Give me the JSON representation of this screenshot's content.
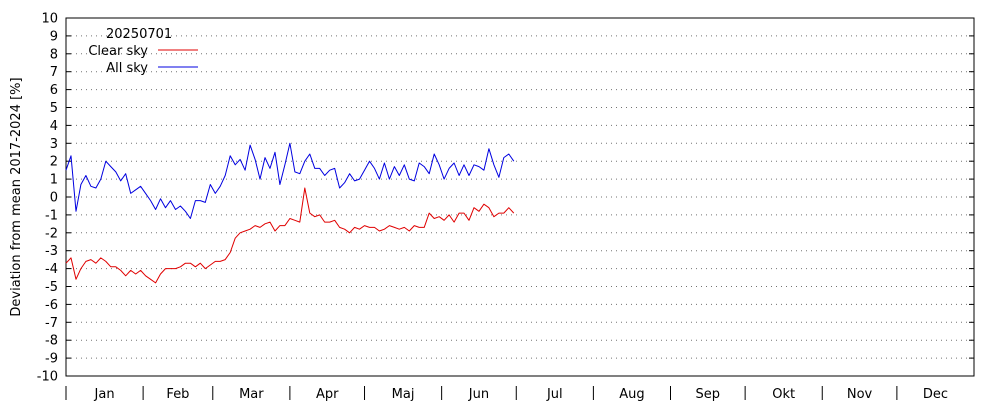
{
  "chart_data": {
    "type": "line",
    "title": "",
    "ylabel": "Deviation from mean 2017-2024  [%]",
    "xlabel": "",
    "ylim": [
      -10,
      10
    ],
    "yticks": [
      -10,
      -9,
      -8,
      -7,
      -6,
      -5,
      -4,
      -3,
      -2,
      -1,
      0,
      1,
      2,
      3,
      4,
      5,
      6,
      7,
      8,
      9,
      10
    ],
    "xlim": [
      1,
      366
    ],
    "months": [
      "Jan",
      "Feb",
      "Mar",
      "Apr",
      "Maj",
      "Jun",
      "Jul",
      "Aug",
      "Sep",
      "Okt",
      "Nov",
      "Dec"
    ],
    "grid": true,
    "legend": {
      "placement": "top-left",
      "header": "20250701"
    },
    "series": [
      {
        "name": "Clear sky",
        "color": "#e00000",
        "x": [
          1,
          3,
          5,
          7,
          9,
          11,
          13,
          15,
          17,
          19,
          21,
          23,
          25,
          27,
          29,
          31,
          33,
          35,
          37,
          39,
          41,
          43,
          45,
          47,
          49,
          51,
          53,
          55,
          57,
          59,
          61,
          63,
          65,
          67,
          69,
          71,
          73,
          75,
          77,
          79,
          81,
          83,
          85,
          87,
          89,
          91,
          93,
          95,
          97,
          99,
          101,
          103,
          105,
          107,
          109,
          111,
          113,
          115,
          117,
          119,
          121,
          123,
          125,
          127,
          129,
          131,
          133,
          135,
          137,
          139,
          141,
          143,
          145,
          147,
          149,
          151,
          153,
          155,
          157,
          159,
          161,
          163,
          165,
          167,
          169,
          171,
          173,
          175,
          177,
          179,
          181
        ],
        "y": [
          -3.7,
          -3.4,
          -4.6,
          -4.0,
          -3.6,
          -3.5,
          -3.7,
          -3.4,
          -3.6,
          -3.9,
          -3.9,
          -4.1,
          -4.4,
          -4.1,
          -4.3,
          -4.1,
          -4.4,
          -4.6,
          -4.8,
          -4.3,
          -4.0,
          -4.0,
          -4.0,
          -3.9,
          -3.7,
          -3.7,
          -3.9,
          -3.7,
          -4.0,
          -3.8,
          -3.6,
          -3.6,
          -3.5,
          -3.1,
          -2.3,
          -2.0,
          -1.9,
          -1.8,
          -1.6,
          -1.7,
          -1.5,
          -1.4,
          -1.9,
          -1.6,
          -1.6,
          -1.2,
          -1.3,
          -1.4,
          0.5,
          -0.9,
          -1.1,
          -1.0,
          -1.4,
          -1.4,
          -1.3,
          -1.7,
          -1.8,
          -2.0,
          -1.7,
          -1.8,
          -1.6,
          -1.7,
          -1.7,
          -1.9,
          -1.8,
          -1.6,
          -1.7,
          -1.8,
          -1.7,
          -1.9,
          -1.6,
          -1.7,
          -1.7,
          -0.9,
          -1.2,
          -1.1,
          -1.3,
          -1.0,
          -1.4,
          -0.9,
          -0.9,
          -1.3,
          -0.6,
          -0.8,
          -0.4,
          -0.6,
          -1.1,
          -0.9,
          -0.9,
          -0.6,
          -0.9
        ]
      },
      {
        "name": "All sky",
        "color": "#0000e0",
        "x": [
          1,
          3,
          5,
          7,
          9,
          11,
          13,
          15,
          17,
          19,
          21,
          23,
          25,
          27,
          29,
          31,
          33,
          35,
          37,
          39,
          41,
          43,
          45,
          47,
          49,
          51,
          53,
          55,
          57,
          59,
          61,
          63,
          65,
          67,
          69,
          71,
          73,
          75,
          77,
          79,
          81,
          83,
          85,
          87,
          89,
          91,
          93,
          95,
          97,
          99,
          101,
          103,
          105,
          107,
          109,
          111,
          113,
          115,
          117,
          119,
          121,
          123,
          125,
          127,
          129,
          131,
          133,
          135,
          137,
          139,
          141,
          143,
          145,
          147,
          149,
          151,
          153,
          155,
          157,
          159,
          161,
          163,
          165,
          167,
          169,
          171,
          173,
          175,
          177,
          179,
          181
        ],
        "y": [
          1.5,
          2.3,
          -0.8,
          0.7,
          1.2,
          0.6,
          0.5,
          1.0,
          2.0,
          1.7,
          1.4,
          0.9,
          1.3,
          0.2,
          0.4,
          0.6,
          0.2,
          -0.2,
          -0.7,
          -0.1,
          -0.6,
          -0.2,
          -0.7,
          -0.5,
          -0.8,
          -1.2,
          -0.2,
          -0.2,
          -0.3,
          0.7,
          0.2,
          0.6,
          1.2,
          2.3,
          1.8,
          2.1,
          1.5,
          2.9,
          2.1,
          1.0,
          2.2,
          1.6,
          2.5,
          0.7,
          1.8,
          3.0,
          1.4,
          1.3,
          2.0,
          2.4,
          1.6,
          1.6,
          1.2,
          1.5,
          1.6,
          0.5,
          0.8,
          1.3,
          0.9,
          1.0,
          1.5,
          2.0,
          1.6,
          1.0,
          1.9,
          1.0,
          1.7,
          1.2,
          1.8,
          1.0,
          0.9,
          1.9,
          1.7,
          1.3,
          2.4,
          1.8,
          1.0,
          1.6,
          1.9,
          1.2,
          1.8,
          1.2,
          1.8,
          1.7,
          1.5,
          2.7,
          1.8,
          1.1,
          2.2,
          2.4,
          2.0
        ]
      }
    ]
  }
}
